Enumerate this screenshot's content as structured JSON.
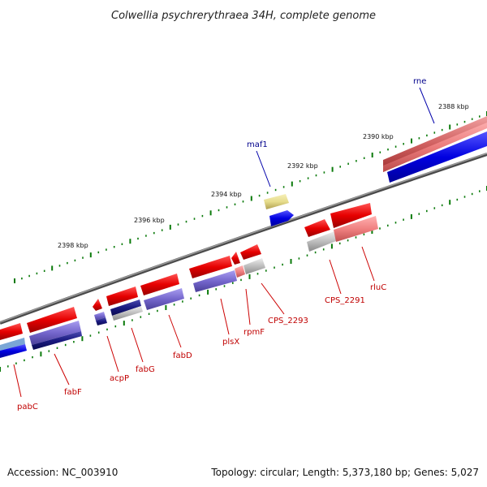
{
  "title": "Colwellia psychrerythraea 34H, complete genome",
  "footer": {
    "accession": "Accession: NC_003910",
    "summary": "Topology: circular; Length: 5,373,180 bp; Genes: 5,027"
  },
  "kbp_labels": [
    "2398 kbp",
    "2396 kbp",
    "2394 kbp",
    "2392 kbp",
    "2390 kbp",
    "2388 kbp"
  ],
  "gene_labels_top": [
    "maf1",
    "rne"
  ],
  "gene_labels_bottom": [
    "pabC",
    "fabF",
    "acpP",
    "fabG",
    "fabD",
    "plsX",
    "rpmF",
    "CPS_2293",
    "CPS_2291",
    "rluC"
  ],
  "colors": {
    "forward_gene": "#e80000",
    "reverse_gene": "#0000e6",
    "cog_purple": "#7d6fd1",
    "cog_navy": "#1a1a8c",
    "cog_pink": "#f08080",
    "cog_gray": "#bdbdbd",
    "cog_yellow": "#e6dc8c",
    "tick_green": "#0a7a0a",
    "backbone": "#6e6e6e"
  }
}
